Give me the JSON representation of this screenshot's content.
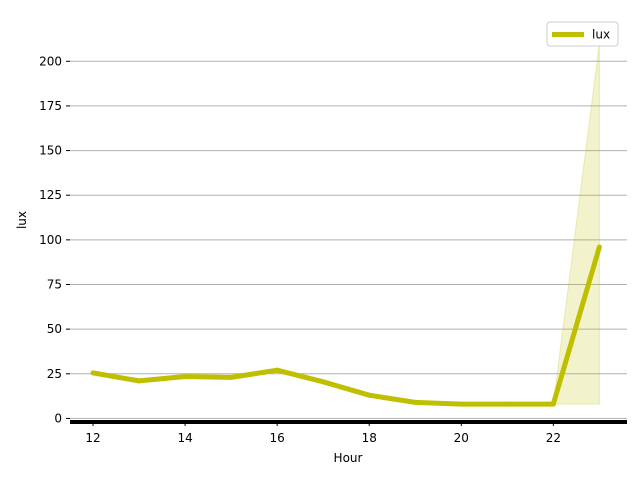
{
  "chart_data": {
    "type": "line",
    "title": "",
    "xlabel": "Hour",
    "ylabel": "lux",
    "x": [
      12,
      13,
      14,
      15,
      16,
      17,
      18,
      19,
      20,
      21,
      22,
      23
    ],
    "series": [
      {
        "name": "lux",
        "values": [
          25.5,
          21,
          23.5,
          23,
          27,
          20.5,
          13,
          9,
          8,
          8,
          8,
          96
        ],
        "band_lower": [
          25.5,
          21,
          23.5,
          23,
          27,
          20.5,
          13,
          9,
          8,
          8,
          8,
          8
        ],
        "band_upper": [
          25.5,
          21,
          23.5,
          23,
          27,
          20.5,
          13,
          9,
          8,
          8,
          8,
          210
        ],
        "color": "#bfbf00",
        "band_color": "#bfbf00"
      }
    ],
    "xlim": [
      11.5,
      23.6
    ],
    "ylim": [
      -2,
      222
    ],
    "xticks": [
      12,
      14,
      16,
      18,
      20,
      22
    ],
    "xtick_labels": [
      "12",
      "14",
      "16",
      "18",
      "20",
      "22"
    ],
    "yticks": [
      0,
      25,
      50,
      75,
      100,
      125,
      150,
      175,
      200
    ],
    "ytick_labels": [
      "0",
      "25",
      "50",
      "75",
      "100",
      "125",
      "150",
      "175",
      "200"
    ],
    "grid": "horizontal",
    "legend": {
      "location": "top-right",
      "entries": [
        "lux"
      ]
    },
    "grid_color": "#b0b0b0",
    "axis_color": "#000000"
  }
}
